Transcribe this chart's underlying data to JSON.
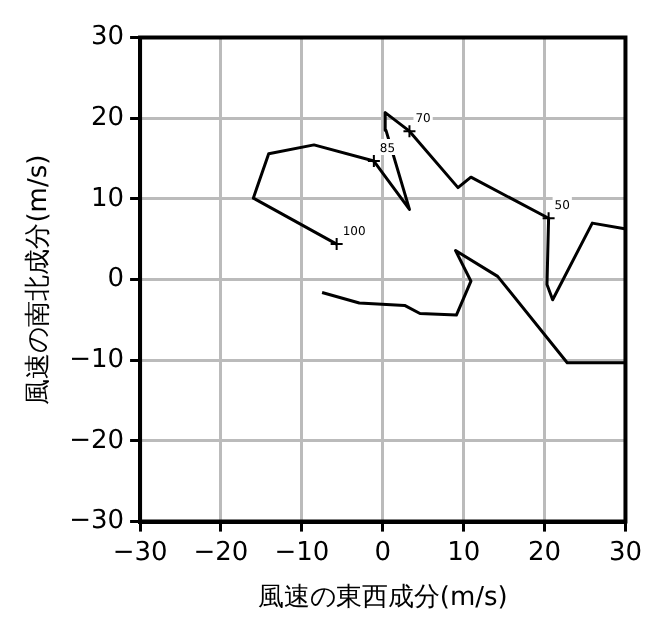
{
  "chart_data": {
    "type": "line",
    "xlabel": "風速の東西成分(m/s)",
    "ylabel": "風速の南北成分(m/s)",
    "x": [
      -7.5,
      -2.9,
      2.7,
      4.6,
      9.1,
      10.9,
      9.0,
      14.2,
      22.8,
      29.9,
      null,
      -5.7,
      -16.0,
      -14.1,
      -8.5,
      -1.1,
      3.3,
      0.4,
      0.3,
      3.3,
      9.3,
      10.9,
      20.5,
      20.3,
      21.0,
      25.9,
      29.9
    ],
    "series": [
      {
        "color": "#000000",
        "values": [
          -1.6,
          -2.9,
          -3.2,
          -4.2,
          -4.4,
          -0.2,
          3.6,
          0.4,
          -10.3,
          -10.3,
          null,
          4.4,
          10.1,
          15.6,
          16.7,
          14.7,
          8.7,
          18.5,
          20.7,
          18.4,
          11.4,
          12.7,
          7.6,
          -0.6,
          -2.5,
          7.0,
          6.3
        ]
      }
    ],
    "xlim": [
      -30,
      30
    ],
    "ylim": [
      -30,
      30
    ],
    "xticks": [
      {
        "value": -30,
        "label": "−30"
      },
      {
        "value": -20,
        "label": "−20"
      },
      {
        "value": -10,
        "label": "−10"
      },
      0,
      10,
      20,
      30
    ],
    "yticks": [
      {
        "value": -30,
        "label": "−30"
      },
      {
        "value": -20,
        "label": "−20"
      },
      {
        "value": -10,
        "label": "−10"
      },
      0,
      10,
      20,
      30
    ],
    "grid": true,
    "marker": "none",
    "annotations": [
      {
        "text": "100",
        "x": -5.7,
        "y": 4.4
      },
      {
        "text": "85",
        "x": -1.1,
        "y": 14.7
      },
      {
        "text": "70",
        "x": 3.3,
        "y": 18.4
      },
      {
        "text": "50",
        "x": 20.5,
        "y": 7.6
      }
    ]
  }
}
